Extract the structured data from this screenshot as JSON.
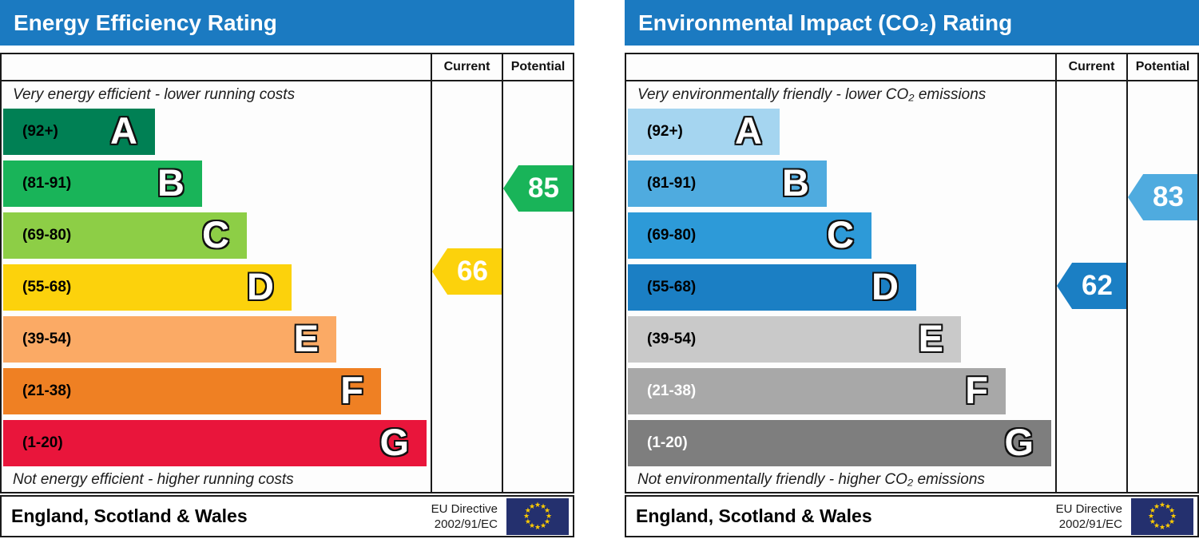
{
  "header_color": "#1b7ac1",
  "chart_data": [
    {
      "type": "bar",
      "title": "Energy Efficiency Rating",
      "top_note": "Very energy efficient - lower running costs",
      "bottom_note": "Not energy efficient - higher running costs",
      "columns": [
        "Current",
        "Potential"
      ],
      "bands": [
        {
          "letter": "A",
          "range": "(92+)",
          "lo": 92,
          "hi": 100,
          "width_pct": 35.5,
          "color": "#008054",
          "label_color": "#000000"
        },
        {
          "letter": "B",
          "range": "(81-91)",
          "lo": 81,
          "hi": 91,
          "width_pct": 46.5,
          "color": "#19b459",
          "label_color": "#000000"
        },
        {
          "letter": "C",
          "range": "(69-80)",
          "lo": 69,
          "hi": 80,
          "width_pct": 57.0,
          "color": "#8dce46",
          "label_color": "#000000"
        },
        {
          "letter": "D",
          "range": "(55-68)",
          "lo": 55,
          "hi": 68,
          "width_pct": 67.5,
          "color": "#fcd20c",
          "label_color": "#000000"
        },
        {
          "letter": "E",
          "range": "(39-54)",
          "lo": 39,
          "hi": 54,
          "width_pct": 78.0,
          "color": "#fbaa65",
          "label_color": "#000000"
        },
        {
          "letter": "F",
          "range": "(21-38)",
          "lo": 21,
          "hi": 38,
          "width_pct": 88.5,
          "color": "#ef8023",
          "label_color": "#000000"
        },
        {
          "letter": "G",
          "range": "(1-20)",
          "lo": 1,
          "hi": 20,
          "width_pct": 99.0,
          "color": "#e9153b",
          "label_color": "#000000"
        }
      ],
      "current": {
        "value": 66,
        "band": "D",
        "color": "#fcd20c"
      },
      "potential": {
        "value": 85,
        "band": "B",
        "color": "#19b459"
      },
      "footer": {
        "region": "England, Scotland & Wales",
        "directive_line1": "EU Directive",
        "directive_line2": "2002/91/EC",
        "flag": {
          "name": "eu-flag",
          "background": "#24306e",
          "star_color": "#ffcc00"
        }
      }
    },
    {
      "type": "bar",
      "title": "Environmental Impact (CO₂) Rating",
      "top_note": "Very environmentally friendly - lower CO₂ emissions",
      "bottom_note": "Not environmentally friendly - higher CO₂ emissions",
      "columns": [
        "Current",
        "Potential"
      ],
      "bands": [
        {
          "letter": "A",
          "range": "(92+)",
          "lo": 92,
          "hi": 100,
          "width_pct": 35.5,
          "color": "#a5d5f0",
          "label_color": "#000000"
        },
        {
          "letter": "B",
          "range": "(81-91)",
          "lo": 81,
          "hi": 91,
          "width_pct": 46.5,
          "color": "#4fabdf",
          "label_color": "#000000"
        },
        {
          "letter": "C",
          "range": "(69-80)",
          "lo": 69,
          "hi": 80,
          "width_pct": 57.0,
          "color": "#2d9ad8",
          "label_color": "#000000"
        },
        {
          "letter": "D",
          "range": "(55-68)",
          "lo": 55,
          "hi": 68,
          "width_pct": 67.5,
          "color": "#1b7fc4",
          "label_color": "#000000"
        },
        {
          "letter": "E",
          "range": "(39-54)",
          "lo": 39,
          "hi": 54,
          "width_pct": 78.0,
          "color": "#c9c9c9",
          "label_color": "#000000"
        },
        {
          "letter": "F",
          "range": "(21-38)",
          "lo": 21,
          "hi": 38,
          "width_pct": 88.5,
          "color": "#a8a8a8",
          "label_color": "#ffffff"
        },
        {
          "letter": "G",
          "range": "(1-20)",
          "lo": 1,
          "hi": 20,
          "width_pct": 99.0,
          "color": "#7e7e7e",
          "label_color": "#ffffff"
        }
      ],
      "current": {
        "value": 62,
        "band": "D",
        "color": "#1b7fc4"
      },
      "potential": {
        "value": 83,
        "band": "B",
        "color": "#4fabdf"
      },
      "footer": {
        "region": "England, Scotland & Wales",
        "directive_line1": "EU Directive",
        "directive_line2": "2002/91/EC",
        "flag": {
          "name": "eu-flag",
          "background": "#24306e",
          "star_color": "#ffcc00"
        }
      }
    }
  ]
}
